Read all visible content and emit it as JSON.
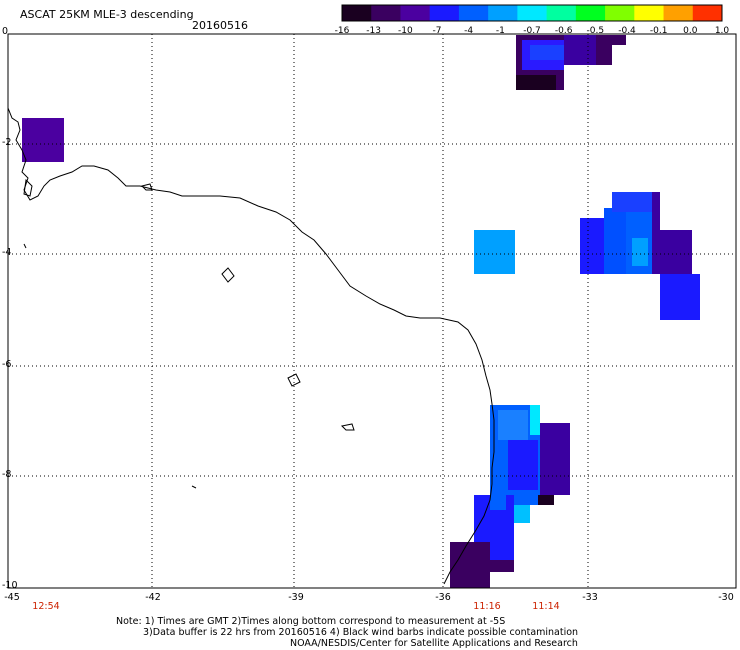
{
  "header": {
    "title": "ASCAT 25KM MLE-3 descending",
    "date": "20160516"
  },
  "colorbar": {
    "labels": [
      "-16",
      "-13",
      "-10",
      "-7",
      "-4",
      "-1",
      "-0.7",
      "-0.6",
      "-0.5",
      "-0.4",
      "-0.1",
      "0.0",
      "1.0"
    ],
    "colors": [
      "#1a0020",
      "#3a0060",
      "#4b00a0",
      "#1a1aff",
      "#0060ff",
      "#00a0ff",
      "#00e8ff",
      "#00ffa0",
      "#00ff20",
      "#80ff00",
      "#ffff00",
      "#ffa000",
      "#ff3000"
    ]
  },
  "axes": {
    "x_ticks": [
      "-45",
      "-42",
      "-39",
      "-36",
      "-33",
      "-30"
    ],
    "y_ticks": [
      "0",
      "-2",
      "-4",
      "-6",
      "-8",
      "-10"
    ]
  },
  "times": [
    "12:54",
    "11:16",
    "11:14"
  ],
  "notes": {
    "line1": "Note: 1) Times are GMT 2)Times along bottom correspond to measurement at -5S",
    "line2": "3)Data buffer is 22 hrs from 20160516 4) Black wind barbs indicate possible contamination",
    "line3": "NOAA/NESDIS/Center for Satellite Applications and Research"
  }
}
